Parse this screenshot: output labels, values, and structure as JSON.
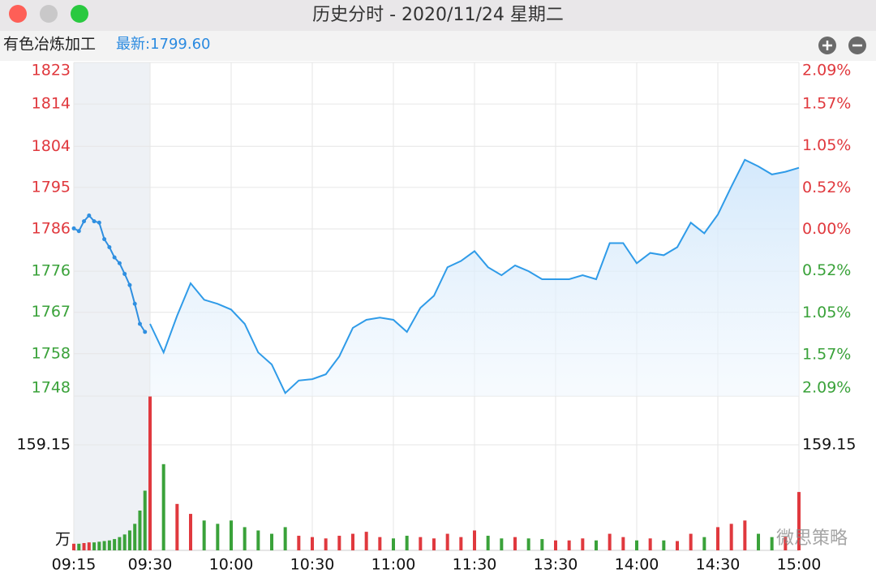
{
  "window": {
    "title": "历史分时 - 2020/11/24 星期二"
  },
  "header": {
    "name": "有色冶炼加工",
    "latest": "最新:1799.60"
  },
  "watermark": "微思策略",
  "chart_data": [
    {
      "type": "line",
      "xlim": [
        -15,
        240
      ],
      "xticks": [
        {
          "value": -15,
          "label": "09:15"
        },
        {
          "value": 0,
          "label": "09:30"
        },
        {
          "value": 30,
          "label": "10:00"
        },
        {
          "value": 60,
          "label": "10:30"
        },
        {
          "value": 90,
          "label": "11:00"
        },
        {
          "value": 120,
          "label": "11:30"
        },
        {
          "value": 150,
          "label": "13:30"
        },
        {
          "value": 180,
          "label": "14:00"
        },
        {
          "value": 210,
          "label": "14:30"
        },
        {
          "value": 240,
          "label": "15:00"
        }
      ],
      "ylim": [
        1748.4,
        1823.2
      ],
      "yticks": [
        {
          "value": 1823.2,
          "label": "1823"
        },
        {
          "value": 1813.9,
          "label": "1814"
        },
        {
          "value": 1804.4,
          "label": "1804"
        },
        {
          "value": 1795.2,
          "label": "1795"
        },
        {
          "value": 1785.9,
          "label": "1786"
        },
        {
          "value": 1776.4,
          "label": "1776"
        },
        {
          "value": 1767.2,
          "label": "1767"
        },
        {
          "value": 1757.9,
          "label": "1758"
        },
        {
          "value": 1748.4,
          "label": "1748"
        }
      ],
      "y2lim": [
        -2.09,
        2.09
      ],
      "y2ticks": [
        {
          "value": 2.09,
          "label": "2.09%"
        },
        {
          "value": 1.57,
          "label": "1.57%"
        },
        {
          "value": 1.05,
          "label": "1.05%"
        },
        {
          "value": 0.52,
          "label": "0.52%"
        },
        {
          "value": 0,
          "label": "0.00%"
        },
        {
          "value": -0.52,
          "label": "0.52%"
        },
        {
          "value": -1.05,
          "label": "1.05%"
        },
        {
          "value": -1.57,
          "label": "1.57%"
        },
        {
          "value": -2.09,
          "label": "2.09%"
        }
      ],
      "up_color": "#e0393e",
      "down_color": "#3aa23a",
      "grid": true,
      "series": [
        {
          "color": "#2f8fe0",
          "markers": true,
          "x": [
            -15,
            -14,
            -13,
            -12,
            -11,
            -10,
            -9,
            -8,
            -7,
            -6,
            -5,
            -4,
            -3,
            -2,
            -1
          ],
          "values": [
            1786.0,
            1785.4,
            1787.6,
            1788.9,
            1787.6,
            1787.3,
            1783.6,
            1781.8,
            1779.5,
            1778.2,
            1775.8,
            1773.3,
            1769.1,
            1764.6,
            1762.8
          ]
        },
        {
          "color": "#2f9be8",
          "area": true,
          "x": [
            0,
            5,
            10,
            15,
            20,
            25,
            30,
            35,
            40,
            45,
            50,
            55,
            60,
            65,
            70,
            75,
            80,
            85,
            90,
            95,
            100,
            105,
            110,
            115,
            120,
            125,
            130,
            135,
            140,
            145,
            150,
            155,
            160,
            165,
            170,
            175,
            180,
            185,
            190,
            195,
            200,
            205,
            210,
            215,
            220,
            225,
            230,
            235,
            240
          ],
          "values": [
            1764.6,
            1758.2,
            1766.4,
            1773.7,
            1770.0,
            1769.1,
            1767.8,
            1764.6,
            1758.2,
            1755.5,
            1749.1,
            1751.9,
            1752.2,
            1753.3,
            1757.3,
            1763.7,
            1765.5,
            1766.0,
            1765.5,
            1762.8,
            1768.2,
            1770.9,
            1777.3,
            1778.7,
            1780.9,
            1777.3,
            1775.5,
            1777.7,
            1776.4,
            1774.6,
            1774.6,
            1774.6,
            1775.5,
            1774.6,
            1782.7,
            1782.7,
            1778.2,
            1780.5,
            1780.0,
            1781.8,
            1787.3,
            1784.9,
            1789.1,
            1795.4,
            1801.4,
            1799.9,
            1798.1,
            1798.7,
            1799.6
          ]
        }
      ]
    },
    {
      "type": "bar",
      "y_unit": "万",
      "ylim": [
        0,
        232.6
      ],
      "yticks": [
        159.15
      ],
      "x": [
        -15,
        -14,
        -13,
        -12,
        -11,
        -10,
        -9,
        -8,
        -7,
        -6,
        -5,
        -4,
        -3,
        -2,
        -1,
        0,
        5,
        10,
        15,
        20,
        25,
        30,
        35,
        40,
        45,
        50,
        55,
        60,
        65,
        70,
        75,
        80,
        85,
        90,
        95,
        100,
        105,
        110,
        115,
        120,
        125,
        130,
        135,
        140,
        145,
        150,
        155,
        160,
        165,
        170,
        175,
        180,
        185,
        190,
        195,
        200,
        205,
        210,
        215,
        220,
        225,
        230,
        235,
        240
      ],
      "values": [
        10,
        10,
        11,
        12,
        12,
        13,
        14,
        15,
        17,
        20,
        24,
        30,
        40,
        60,
        90,
        232,
        130,
        70,
        55,
        45,
        40,
        45,
        35,
        30,
        25,
        35,
        22,
        20,
        18,
        22,
        25,
        28,
        20,
        18,
        22,
        20,
        18,
        25,
        20,
        30,
        22,
        18,
        20,
        18,
        17,
        15,
        15,
        18,
        15,
        25,
        20,
        15,
        18,
        15,
        14,
        25,
        20,
        35,
        40,
        45,
        25,
        20,
        20,
        88
      ]
    }
  ]
}
